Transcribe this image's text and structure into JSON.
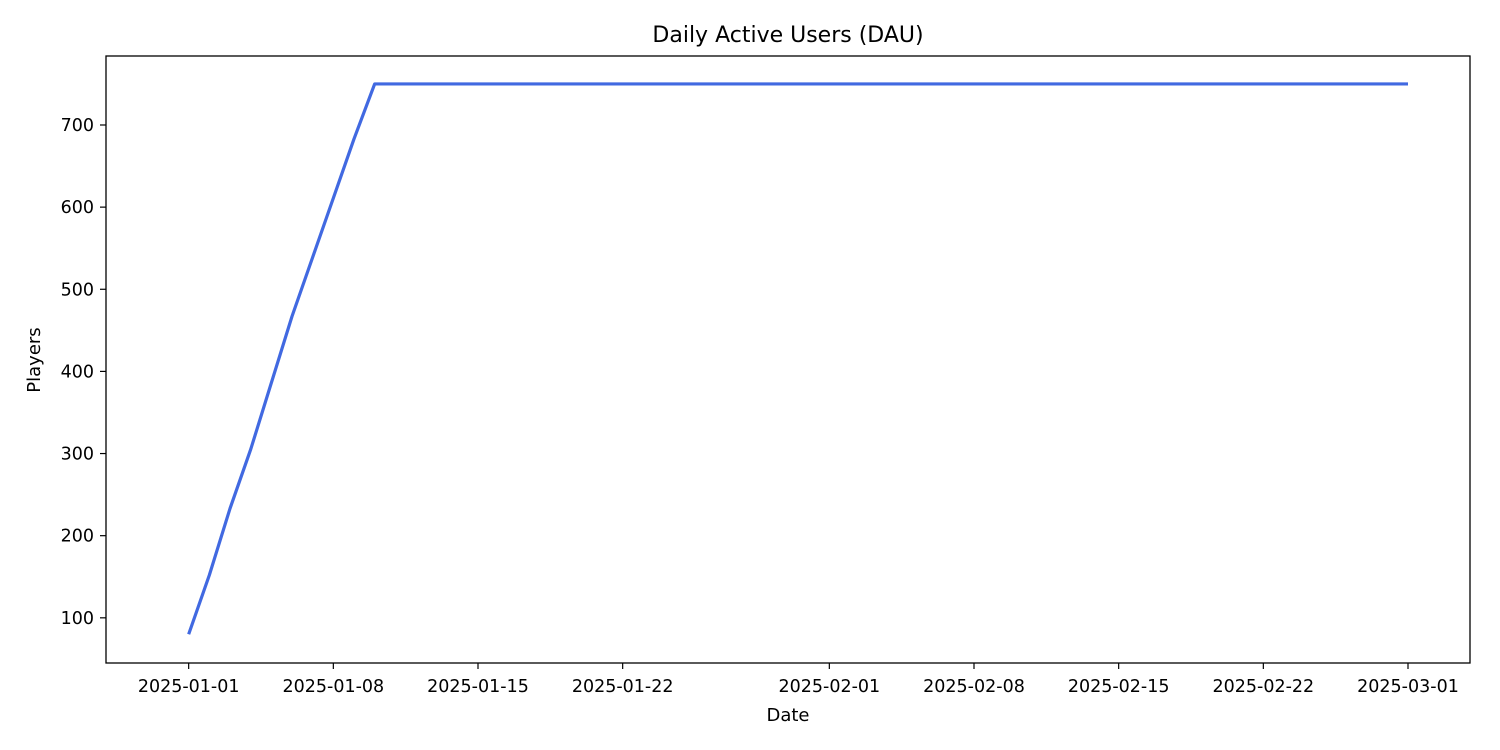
{
  "chart_data": {
    "type": "line",
    "title": "Daily Active Users (DAU)",
    "xlabel": "Date",
    "ylabel": "Players",
    "x_axis_type": "date",
    "xlim": [
      "2024-12-28",
      "2025-03-04"
    ],
    "ylim": [
      45,
      784
    ],
    "x_ticks": [
      "2025-01-01",
      "2025-01-08",
      "2025-01-15",
      "2025-01-22",
      "2025-02-01",
      "2025-02-08",
      "2025-02-15",
      "2025-02-22",
      "2025-03-01"
    ],
    "y_ticks": [
      100,
      200,
      300,
      400,
      500,
      600,
      700
    ],
    "grid": false,
    "legend": null,
    "series": [
      {
        "color": "#4169e1",
        "points": [
          {
            "x": "2025-01-01",
            "y": 80
          },
          {
            "x": "2025-01-02",
            "y": 152
          },
          {
            "x": "2025-01-03",
            "y": 233
          },
          {
            "x": "2025-01-04",
            "y": 305
          },
          {
            "x": "2025-01-05",
            "y": 386
          },
          {
            "x": "2025-01-06",
            "y": 467
          },
          {
            "x": "2025-01-07",
            "y": 539
          },
          {
            "x": "2025-01-08",
            "y": 611
          },
          {
            "x": "2025-01-09",
            "y": 683
          },
          {
            "x": "2025-01-10",
            "y": 750
          },
          {
            "x": "2025-03-01",
            "y": 750
          }
        ]
      }
    ]
  }
}
